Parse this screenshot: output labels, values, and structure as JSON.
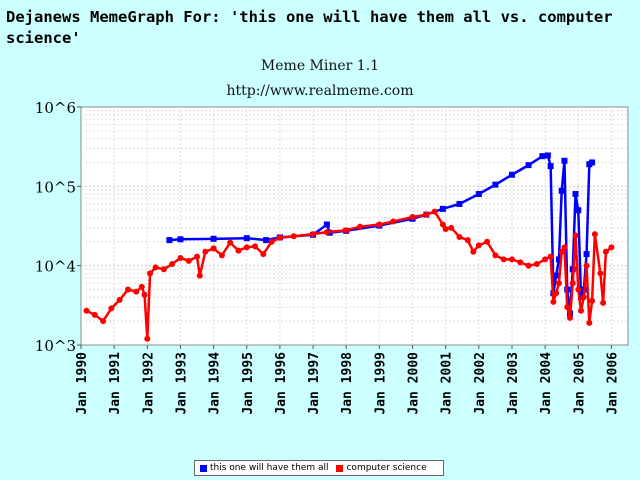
{
  "header": {
    "title": "Dejanews MemeGraph For: 'this one will have them all vs. computer science'",
    "subtitle1": "Meme Miner 1.1",
    "subtitle2": "http://www.realmeme.com"
  },
  "colors": {
    "background": "#ccffff",
    "series1": "#0000ff",
    "series2": "#ff0000"
  },
  "chart_data": {
    "type": "line",
    "title": "",
    "xlabel": "",
    "ylabel": "",
    "yscale": "log",
    "ylim": [
      1000,
      1000000
    ],
    "y_tick_labels": [
      "10^3",
      "10^4",
      "10^5",
      "10^6"
    ],
    "x_range": [
      "1990-01",
      "2006-07"
    ],
    "x_tick_labels": [
      "Jan 1990",
      "Jan 1991",
      "Jan 1992",
      "Jan 1993",
      "Jan 1994",
      "Jan 1995",
      "Jan 1996",
      "Jan 1997",
      "Jan 1998",
      "Jan 1999",
      "Jan 2000",
      "Jan 2001",
      "Jan 2002",
      "Jan 2003",
      "Jan 2004",
      "Jan 2005",
      "Jan 2006"
    ],
    "grid": true,
    "legend_position": "bottom",
    "series": [
      {
        "name": "this one will have them all",
        "color": "#0000ff",
        "marker": "square",
        "points": [
          [
            "1992-09",
            21000
          ],
          [
            "1993-01",
            21500
          ],
          [
            "1994-01",
            21800
          ],
          [
            "1995-01",
            22200
          ],
          [
            "1995-08",
            21000
          ],
          [
            "1996-01",
            22700
          ],
          [
            "1997-01",
            24500
          ],
          [
            "1997-06",
            33000
          ],
          [
            "1997-07",
            26000
          ],
          [
            "1998-01",
            27500
          ],
          [
            "1999-01",
            32000
          ],
          [
            "2000-01",
            39000
          ],
          [
            "2000-06",
            44000
          ],
          [
            "2000-12",
            52000
          ],
          [
            "2001-06",
            60000
          ],
          [
            "2002-01",
            80000
          ],
          [
            "2002-07",
            105000
          ],
          [
            "2003-01",
            140000
          ],
          [
            "2003-07",
            185000
          ],
          [
            "2003-12",
            240000
          ],
          [
            "2004-02",
            245000
          ],
          [
            "2004-03",
            180000
          ],
          [
            "2004-04",
            4500
          ],
          [
            "2004-05",
            7500
          ],
          [
            "2004-06",
            12000
          ],
          [
            "2004-07",
            88000
          ],
          [
            "2004-08",
            210000
          ],
          [
            "2004-09",
            5000
          ],
          [
            "2004-10",
            2500
          ],
          [
            "2004-11",
            9000
          ],
          [
            "2004-12",
            80000
          ],
          [
            "2005-01",
            50000
          ],
          [
            "2005-02",
            4000
          ],
          [
            "2005-03",
            5000
          ],
          [
            "2005-04",
            14000
          ],
          [
            "2005-05",
            190000
          ],
          [
            "2005-06",
            200000
          ]
        ]
      },
      {
        "name": "computer science",
        "color": "#ff0000",
        "marker": "circle",
        "points": [
          [
            "1990-03",
            2700
          ],
          [
            "1990-06",
            2400
          ],
          [
            "1990-09",
            2000
          ],
          [
            "1990-12",
            2900
          ],
          [
            "1991-03",
            3700
          ],
          [
            "1991-06",
            5000
          ],
          [
            "1991-09",
            4700
          ],
          [
            "1991-11",
            5400
          ],
          [
            "1991-12",
            4300
          ],
          [
            "1992-01",
            1200
          ],
          [
            "1992-02",
            8000
          ],
          [
            "1992-04",
            9500
          ],
          [
            "1992-07",
            9000
          ],
          [
            "1992-10",
            10500
          ],
          [
            "1993-01",
            12500
          ],
          [
            "1993-04",
            11500
          ],
          [
            "1993-07",
            13000
          ],
          [
            "1993-08",
            7500
          ],
          [
            "1993-10",
            15000
          ],
          [
            "1994-01",
            16500
          ],
          [
            "1994-04",
            13500
          ],
          [
            "1994-07",
            19500
          ],
          [
            "1994-10",
            15500
          ],
          [
            "1995-01",
            17000
          ],
          [
            "1995-04",
            17500
          ],
          [
            "1995-07",
            14000
          ],
          [
            "1995-10",
            20000
          ],
          [
            "1996-01",
            22500
          ],
          [
            "1996-06",
            23500
          ],
          [
            "1997-01",
            25000
          ],
          [
            "1997-06",
            26500
          ],
          [
            "1998-01",
            28000
          ],
          [
            "1998-06",
            31000
          ],
          [
            "1999-01",
            33000
          ],
          [
            "1999-06",
            36000
          ],
          [
            "2000-01",
            41000
          ],
          [
            "2000-06",
            44000
          ],
          [
            "2000-09",
            48000
          ],
          [
            "2000-12",
            33000
          ],
          [
            "2001-01",
            29000
          ],
          [
            "2001-03",
            30000
          ],
          [
            "2001-06",
            23000
          ],
          [
            "2001-09",
            21000
          ],
          [
            "2001-11",
            15000
          ],
          [
            "2002-01",
            18000
          ],
          [
            "2002-04",
            20000
          ],
          [
            "2002-07",
            13500
          ],
          [
            "2002-10",
            12000
          ],
          [
            "2003-01",
            12000
          ],
          [
            "2003-04",
            11000
          ],
          [
            "2003-07",
            10000
          ],
          [
            "2003-10",
            10500
          ],
          [
            "2004-01",
            12000
          ],
          [
            "2004-03",
            13000
          ],
          [
            "2004-04",
            3500
          ],
          [
            "2004-05",
            4500
          ],
          [
            "2004-06",
            6000
          ],
          [
            "2004-07",
            15000
          ],
          [
            "2004-08",
            17000
          ],
          [
            "2004-09",
            3000
          ],
          [
            "2004-10",
            2200
          ],
          [
            "2004-11",
            6000
          ],
          [
            "2004-12",
            24000
          ],
          [
            "2005-01",
            5000
          ],
          [
            "2005-02",
            2700
          ],
          [
            "2005-03",
            4000
          ],
          [
            "2005-04",
            10000
          ],
          [
            "2005-05",
            1900
          ],
          [
            "2005-06",
            3600
          ],
          [
            "2005-07",
            25000
          ],
          [
            "2005-09",
            8000
          ],
          [
            "2005-10",
            3400
          ],
          [
            "2005-11",
            15000
          ],
          [
            "2006-01",
            17000
          ]
        ]
      }
    ]
  }
}
